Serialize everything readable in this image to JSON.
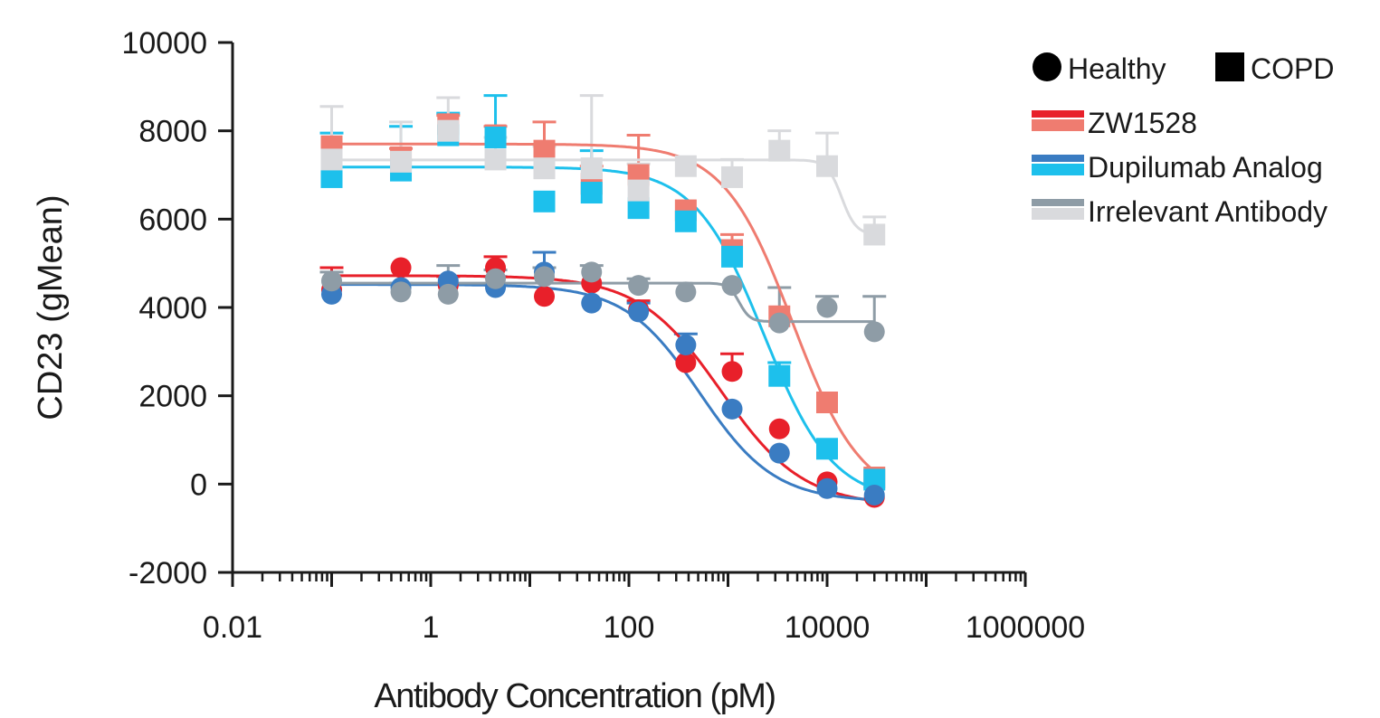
{
  "chart_data": {
    "type": "scatter",
    "x_scale": "log",
    "x_label": "Antibody Concentration (pM)",
    "y_label": "CD23 (gMean)",
    "xlim": [
      0.01,
      1000000
    ],
    "ylim": [
      -2000,
      10000
    ],
    "x_ticks": [
      {
        "value": 0.01,
        "label": "0.01"
      },
      {
        "value": 1,
        "label": "1"
      },
      {
        "value": 100,
        "label": "100"
      },
      {
        "value": 10000,
        "label": "10000"
      },
      {
        "value": 1000000,
        "label": "1000000"
      }
    ],
    "y_ticks": [
      {
        "value": -2000,
        "label": "-2000"
      },
      {
        "value": 0,
        "label": "0"
      },
      {
        "value": 2000,
        "label": "2000"
      },
      {
        "value": 4000,
        "label": "4000"
      },
      {
        "value": 6000,
        "label": "6000"
      },
      {
        "value": 8000,
        "label": "8000"
      },
      {
        "value": 10000,
        "label": "10000"
      }
    ],
    "grid": false,
    "legend_position": "top-right",
    "legend": {
      "marker_entries": [
        {
          "label": "Healthy",
          "marker": "circle"
        },
        {
          "label": "COPD",
          "marker": "square"
        }
      ],
      "series_entries": [
        {
          "label": "ZW1528",
          "healthy_color": "#e8202a",
          "copd_color": "#ef7c70"
        },
        {
          "label": "Dupilumab Analog",
          "healthy_color": "#3a7cc2",
          "copd_color": "#1dc0ec"
        },
        {
          "label": "Irrelevant Antibody",
          "healthy_color": "#8e9ca6",
          "copd_color": "#d9dadd"
        }
      ]
    },
    "series": [
      {
        "name": "ZW1528",
        "group": "COPD",
        "marker": "square",
        "color": "#ef7c70",
        "x": [
          0.1,
          0.5,
          1.5,
          4.5,
          14,
          42,
          125,
          375,
          1100,
          3300,
          10000,
          30000
        ],
        "y": [
          7650,
          7400,
          8150,
          7900,
          7550,
          6800,
          7000,
          6200,
          5300,
          3800,
          1850,
          150
        ],
        "err": [
          0,
          200,
          200,
          200,
          650,
          400,
          900,
          0,
          350,
          0,
          0,
          0
        ]
      },
      {
        "name": "Dupilumab Analog",
        "group": "COPD",
        "marker": "square",
        "color": "#1dc0ec",
        "x": [
          0.1,
          0.5,
          1.5,
          4.5,
          14,
          42,
          125,
          375,
          1100,
          3300,
          10000,
          30000
        ],
        "y": [
          6950,
          7100,
          7900,
          7850,
          6400,
          6600,
          6250,
          5950,
          5150,
          2450,
          800,
          100
        ],
        "err": [
          1000,
          1000,
          500,
          950,
          0,
          950,
          0,
          0,
          0,
          300,
          0,
          0
        ]
      },
      {
        "name": "Irrelevant Antibody",
        "group": "COPD",
        "marker": "square",
        "color": "#d9dadd",
        "x": [
          0.1,
          0.5,
          1.5,
          4.5,
          14,
          42,
          125,
          375,
          1100,
          3300,
          10000,
          30000
        ],
        "y": [
          7350,
          7300,
          8000,
          7350,
          7150,
          7150,
          6650,
          7200,
          6950,
          7550,
          7200,
          5650
        ],
        "err": [
          1200,
          900,
          750,
          500,
          500,
          1650,
          600,
          0,
          400,
          450,
          750,
          400
        ]
      },
      {
        "name": "ZW1528",
        "group": "Healthy",
        "marker": "circle",
        "color": "#e8202a",
        "x": [
          0.1,
          0.5,
          1.5,
          4.5,
          14,
          42,
          125,
          375,
          1100,
          3300,
          10000,
          30000
        ],
        "y": [
          4400,
          4900,
          4500,
          4900,
          4250,
          4550,
          3950,
          2750,
          2550,
          1250,
          50,
          -300
        ],
        "err": [
          500,
          0,
          200,
          250,
          0,
          0,
          200,
          0,
          400,
          0,
          0,
          0
        ]
      },
      {
        "name": "Dupilumab Analog",
        "group": "Healthy",
        "marker": "circle",
        "color": "#3a7cc2",
        "x": [
          0.1,
          0.5,
          1.5,
          4.5,
          14,
          42,
          125,
          375,
          1100,
          3300,
          10000,
          30000
        ],
        "y": [
          4300,
          4450,
          4600,
          4450,
          4800,
          4100,
          3900,
          3150,
          1700,
          700,
          -100,
          -250
        ],
        "err": [
          0,
          0,
          0,
          250,
          450,
          0,
          200,
          250,
          0,
          0,
          0,
          0
        ]
      },
      {
        "name": "Irrelevant Antibody",
        "group": "Healthy",
        "marker": "circle",
        "color": "#8e9ca6",
        "x": [
          0.1,
          0.5,
          1.5,
          4.5,
          14,
          42,
          125,
          375,
          1100,
          3300,
          10000,
          30000
        ],
        "y": [
          4600,
          4350,
          4300,
          4650,
          4700,
          4800,
          4500,
          4350,
          4500,
          3650,
          4000,
          3450
        ],
        "err": [
          200,
          200,
          650,
          200,
          200,
          150,
          150,
          0,
          0,
          800,
          250,
          800
        ]
      }
    ],
    "fit_curves": [
      {
        "name": "ZW1528",
        "group": "COPD",
        "color": "#ef7c70",
        "top": 7700,
        "bottom": -400,
        "ec50": 4500,
        "hill": 1.25
      },
      {
        "name": "Dupilumab Analog",
        "group": "COPD",
        "color": "#1dc0ec",
        "top": 7180,
        "bottom": -400,
        "ec50": 2300,
        "hill": 1.25
      },
      {
        "name": "Irrelevant Antibody",
        "group": "COPD",
        "color": "#d9dadd",
        "top": 7340,
        "bottom": 5650,
        "ec50": 14000,
        "hill": 6
      },
      {
        "name": "ZW1528",
        "group": "Healthy",
        "color": "#e8202a",
        "top": 4720,
        "bottom": -500,
        "ec50": 850,
        "hill": 1.05
      },
      {
        "name": "Dupilumab Analog",
        "group": "Healthy",
        "color": "#3a7cc2",
        "top": 4520,
        "bottom": -400,
        "ec50": 520,
        "hill": 1.15
      },
      {
        "name": "Irrelevant Antibody",
        "group": "Healthy",
        "color": "#8e9ca6",
        "top": 4550,
        "bottom": 3680,
        "ec50": 1300,
        "hill": 8
      }
    ]
  }
}
